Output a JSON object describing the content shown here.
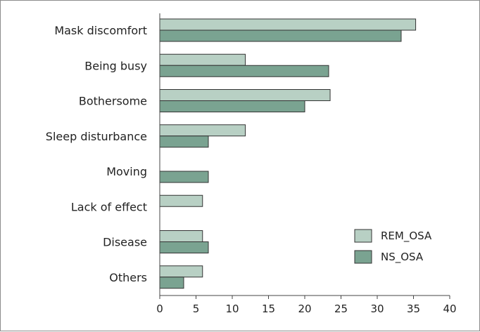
{
  "chart_data": {
    "type": "bar",
    "orientation": "horizontal",
    "categories": [
      "Mask discomfort",
      "Being busy",
      "Bothersome",
      "Sleep disturbance",
      "Moving",
      "Lack of effect",
      "Disease",
      "Others"
    ],
    "series": [
      {
        "name": "REM_OSA",
        "color": "#b8d0c4",
        "values": [
          35.3,
          11.8,
          23.5,
          11.8,
          0,
          5.9,
          5.9,
          5.9
        ]
      },
      {
        "name": "NS_OSA",
        "color": "#7aa391",
        "values": [
          33.3,
          23.3,
          20.0,
          6.7,
          6.7,
          0,
          6.7,
          3.3
        ]
      }
    ],
    "xlim": [
      0,
      40
    ],
    "xticks": [
      0,
      5,
      10,
      15,
      20,
      25,
      30,
      35,
      40
    ],
    "grid": false,
    "legend_position": "bottom-right",
    "xlabel": "",
    "ylabel": "",
    "title": ""
  }
}
